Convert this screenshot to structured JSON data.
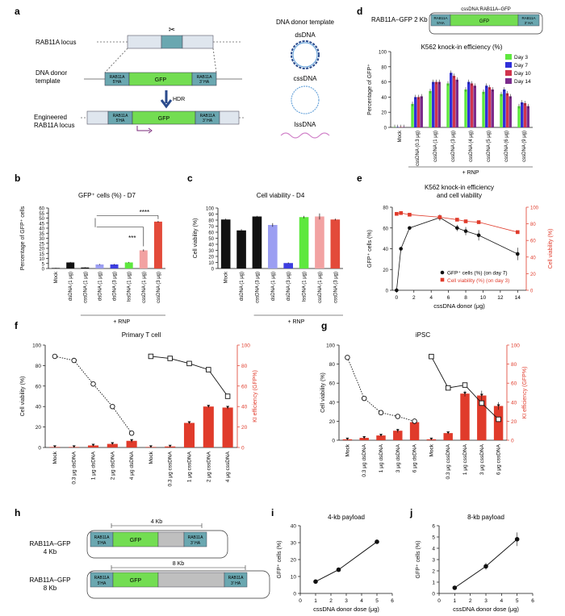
{
  "panels": {
    "a": {
      "letter": "a",
      "rab11a_locus": "RAB11A locus",
      "donor_template_line1": "DNA donor",
      "donor_template_line2": "template",
      "engineered_line1": "Engineered",
      "engineered_line2": "RAB11A locus",
      "hdr": "HDR",
      "gfp": "GFP",
      "ha5_line1": "RAB11A",
      "ha5_line2": "5'HA",
      "ha3_line1": "RAB11A",
      "ha3_line2": "3' HA",
      "legend_title": "DNA donor template",
      "dsdna": "dsDNA",
      "cssdna": "cssDNA",
      "lssdna": "lssDNA",
      "colors": {
        "locus": "#dfe6ee",
        "exon": "#6aa7b0",
        "gfp": "#73dd52"
      }
    },
    "b": {
      "letter": "b",
      "title": "GFP⁺ cells (%) - D7",
      "ylabel": "Percentage of GFP⁺ cells",
      "rnp": "+ RNP",
      "sig1": "****",
      "sig2": "***"
    },
    "c": {
      "letter": "c",
      "title": "Cell viability - D4",
      "ylabel": "Cell viability (%)",
      "rnp": "+ RNP"
    },
    "d": {
      "letter": "d",
      "construct": "RAB11A–GFP 2 Kb",
      "construct_label": "cssDNA:RAB11A–GFP",
      "title": "K562 knock-in efficiency (%)",
      "ylabel": "Percentage of GFP⁺",
      "rnp": "+ RNP"
    },
    "e": {
      "letter": "e",
      "title_line1": "K562 knock-in efficiency",
      "title_line2": "and cell viability",
      "ylabel": "GFP⁺ cells (%)",
      "ylabel2": "Cell viability (%)",
      "xlabel": "cssDNA donor (μg)",
      "legend1": "GFP⁺ cells (%) (on day 7)",
      "legend2": "Cell viability (%) (on day 3)"
    },
    "f": {
      "letter": "f",
      "title": "Primary T cell",
      "ylabel": "Cell viability (%)",
      "ylabel2": "KI efficiency (GFP%)"
    },
    "g": {
      "letter": "g",
      "title": "iPSC",
      "ylabel": "Cell viability (%)",
      "ylabel2": "KI efficiency (GFP%)"
    },
    "h": {
      "letter": "h",
      "label4_line1": "RAB11A–GFP",
      "label4_line2": "4 Kb",
      "label8_line1": "RAB11A–GFP",
      "label8_line2": "8 Kb",
      "size4": "4 Kb",
      "size8": "8 Kb"
    },
    "i": {
      "letter": "i",
      "title": "4-kb payload",
      "ylabel": "GFP⁺ cells (%)",
      "xlabel": "cssDNA donor dose (μg)"
    },
    "j": {
      "letter": "j",
      "title": "8-kb payload",
      "ylabel": "GFP⁺ cells (%)",
      "xlabel": "cssDNA donor dose (μg)"
    }
  },
  "chart_data": [
    {
      "id": "b",
      "type": "bar",
      "title": "GFP⁺ cells (%) - D7",
      "ylabel": "Percentage of GFP⁺ cells",
      "ylim": [
        0,
        60
      ],
      "yticks": [
        0,
        5,
        10,
        15,
        20,
        25,
        30,
        35,
        40,
        45,
        50,
        55,
        60
      ],
      "categories": [
        "Mock",
        "dsDNA (1 μg)",
        "cssDNA (1 μg)",
        "dsDNA (1 μg)",
        "dsDNA (3 μg)",
        "lssDNA (1 μg)",
        "cssDNA (1 μg)",
        "cssDNA (3 μg)"
      ],
      "values": [
        0.5,
        6,
        1,
        4,
        4,
        6,
        18,
        46.5
      ],
      "errors": [
        0.2,
        0.5,
        0.3,
        0.5,
        0.5,
        0.5,
        1,
        0.8
      ],
      "colors": [
        "#111111",
        "#111111",
        "#111111",
        "#9b9ef2",
        "#3d3ee0",
        "#5ee83e",
        "#f2a2a2",
        "#e34a3a"
      ]
    },
    {
      "id": "c",
      "type": "bar",
      "title": "Cell viability - D4",
      "ylabel": "Cell viability (%)",
      "ylim": [
        0,
        100
      ],
      "yticks": [
        0,
        10,
        20,
        30,
        40,
        50,
        60,
        70,
        80,
        90,
        100
      ],
      "categories": [
        "Mock",
        "dsDNA (1 μg)",
        "cssDNA (3 μg)",
        "dsDNA (1 μg)",
        "dsDNA (3 μg)",
        "lssDNA (1 μg)",
        "cssDNA (1 μg)",
        "cssDNA (3 μg)"
      ],
      "values": [
        81,
        63,
        86,
        72,
        9,
        85,
        86,
        81
      ],
      "errors": [
        1.5,
        2,
        1,
        3,
        1,
        2,
        5,
        1.5
      ],
      "colors": [
        "#111111",
        "#111111",
        "#111111",
        "#9b9ef2",
        "#3d3ee0",
        "#5ee83e",
        "#f2a2a2",
        "#e34a3a"
      ]
    },
    {
      "id": "d",
      "type": "bar",
      "title": "K562 knock-in efficiency (%)",
      "ylabel": "Percentage of GFP⁺",
      "ylim": [
        0,
        100
      ],
      "yticks": [
        0,
        20,
        40,
        60,
        80,
        100
      ],
      "categories": [
        "Mock",
        "cssDNA (0.3 μg)",
        "cssDNA (1 μg)",
        "cssDNA (3 μg)",
        "cssDNA (4 μg)",
        "cssDNA (5 μg)",
        "cssDNA (6 μg)",
        "cssDNA (9 μg)"
      ],
      "series": [
        {
          "name": "Day 3",
          "color": "#5ee83e",
          "values": [
            0.5,
            31,
            48,
            58,
            50,
            47,
            44,
            28
          ]
        },
        {
          "name": "Day 7",
          "color": "#2f2fd9",
          "values": [
            0.5,
            40,
            60,
            72,
            60,
            55,
            50,
            33
          ]
        },
        {
          "name": "Day 10",
          "color": "#d1344d",
          "values": [
            0.5,
            40,
            60,
            68,
            58,
            53,
            45,
            32
          ]
        },
        {
          "name": "Day 14",
          "color": "#7b2b8c",
          "values": [
            0.5,
            41,
            60,
            63,
            55,
            50,
            41,
            28
          ]
        }
      ]
    },
    {
      "id": "e",
      "type": "line",
      "title": "K562 knock-in efficiency and cell viability",
      "xlabel": "cssDNA donor (μg)",
      "ylabel": "GFP⁺ cells (%)",
      "ylabel2": "Cell viability (%)",
      "xlim": [
        -0.5,
        15
      ],
      "xticks": [
        0,
        2,
        4,
        6,
        8,
        10,
        12,
        14
      ],
      "ylim": [
        0,
        80
      ],
      "yticks": [
        0,
        20,
        40,
        60,
        80
      ],
      "y2lim": [
        0,
        100
      ],
      "y2ticks": [
        0,
        20,
        40,
        60,
        80,
        100
      ],
      "series": [
        {
          "name": "GFP⁺ cells (%) (on day 7)",
          "color": "#111111",
          "marker": "circle",
          "axis": "left",
          "x": [
            0,
            0.5,
            1.5,
            5,
            7,
            8,
            9.5,
            14
          ],
          "y": [
            0,
            40,
            60,
            70,
            60,
            57,
            53,
            35
          ],
          "err": [
            0,
            1,
            1,
            3,
            3,
            4,
            5,
            6
          ]
        },
        {
          "name": "Cell viability (%) (on day 3)",
          "color": "#e03b2b",
          "marker": "square",
          "axis": "right",
          "x": [
            0,
            0.5,
            1.5,
            5,
            7,
            8,
            9.5,
            14
          ],
          "y": [
            92,
            93,
            91,
            88,
            85,
            83,
            82,
            70
          ],
          "err": [
            1,
            1,
            1,
            1,
            1,
            1,
            1,
            1
          ]
        }
      ]
    },
    {
      "id": "f",
      "type": "bar+line",
      "title": "Primary T cell",
      "ylabel": "Cell viability (%)",
      "ylabel2": "KI efficiency (GFP%)",
      "ylim": [
        0,
        100
      ],
      "yticks": [
        0,
        20,
        40,
        60,
        80,
        100
      ],
      "categories": [
        "Mock",
        "0.3 μg dsDNA",
        "1 μg dsDNA",
        "2 μg dsDNA",
        "4 μg dsDNA",
        "Mock",
        "0.3 μg cssDNA",
        "1 μg cssDNA",
        "2 μg cssDNA",
        "4 μg cssDNA"
      ],
      "bars_ki": [
        0.5,
        0.5,
        2,
        3.5,
        6.5,
        0.5,
        1,
        24,
        40,
        39
      ],
      "bars_err": [
        0.2,
        0.2,
        0.5,
        0.5,
        1.5,
        0.2,
        0.5,
        1,
        1,
        1.5
      ],
      "viability_dsDNA": [
        89,
        85,
        62,
        40,
        14
      ],
      "viability_cssDNA": [
        89,
        87,
        82,
        76,
        50
      ]
    },
    {
      "id": "g",
      "type": "bar+line",
      "title": "iPSC",
      "ylabel": "Cell viability (%)",
      "ylabel2": "KI efficiency (GFP%)",
      "ylim": [
        0,
        100
      ],
      "yticks": [
        0,
        20,
        40,
        60,
        80,
        100
      ],
      "categories": [
        "Mock",
        "0.3 μg dsDNA",
        "1 μg dsDNA",
        "3 μg dsDNA",
        "6 μg dsDNA",
        "Mock",
        "0.3 μg cssDNA",
        "1 μg cssDNA",
        "3 μg cssDNA",
        "6 μg cssDNA"
      ],
      "bars_ki": [
        1,
        2.5,
        5,
        10,
        19,
        1,
        7.5,
        49,
        47,
        36
      ],
      "bars_err": [
        0.3,
        1,
        1,
        2,
        2,
        0.3,
        1,
        3,
        5,
        4
      ],
      "viability_dsDNA": [
        87,
        44,
        29,
        25,
        20
      ],
      "viability_cssDNA": [
        88,
        55,
        58,
        39,
        22
      ]
    },
    {
      "id": "i",
      "type": "line",
      "title": "4-kb payload",
      "xlabel": "cssDNA donor dose (μg)",
      "ylabel": "GFP⁺ cells (%)",
      "xlim": [
        0,
        6
      ],
      "xticks": [
        0,
        1,
        2,
        3,
        4,
        5,
        6
      ],
      "ylim": [
        0,
        40
      ],
      "yticks": [
        0,
        10,
        20,
        30,
        40
      ],
      "x": [
        1,
        2.5,
        5
      ],
      "y": [
        7,
        14,
        30.5
      ]
    },
    {
      "id": "j",
      "type": "line",
      "title": "8-kb payload",
      "xlabel": "cssDNA donor dose (μg)",
      "ylabel": "GFP⁺ cells (%)",
      "xlim": [
        0,
        6
      ],
      "xticks": [
        0,
        1,
        2,
        3,
        4,
        5,
        6
      ],
      "ylim": [
        0,
        6
      ],
      "yticks": [
        0,
        1,
        2,
        3,
        4,
        5,
        6
      ],
      "x": [
        1,
        3,
        5
      ],
      "y": [
        0.5,
        2.4,
        4.8
      ],
      "err": [
        0.05,
        0.3,
        0.6
      ]
    }
  ]
}
